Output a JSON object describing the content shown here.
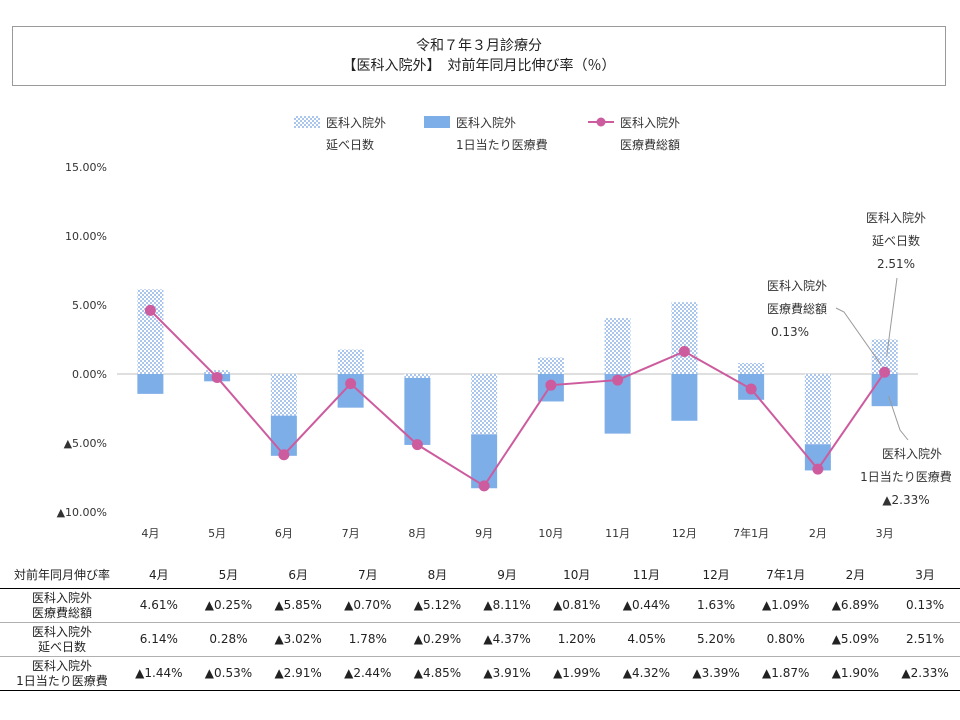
{
  "title": {
    "line1": "令和７年３月診療分",
    "line2": "【医科入院外】　対前年同月比伸び率（％）"
  },
  "colors": {
    "days_bar": "#8fb4e6",
    "cost_bar": "#7eaee8",
    "total_line": "#cc5c9e",
    "axis": "#bfbfbf"
  },
  "chart_data": {
    "type": "bar",
    "categories": [
      "4月",
      "5月",
      "6月",
      "7月",
      "8月",
      "9月",
      "10月",
      "11月",
      "12月",
      "7年1月",
      "2月",
      "3月"
    ],
    "ylim": [
      -10,
      15
    ],
    "yticks": [
      -10,
      -5,
      0,
      5,
      10,
      15
    ],
    "ytick_labels": [
      "▲10.00%",
      "▲5.00%",
      "0.00%",
      "5.00%",
      "10.00%",
      "15.00%"
    ],
    "stacked": true,
    "legend": [
      {
        "line1": "医科入院外",
        "line2": "延べ日数"
      },
      {
        "line1": "医科入院外",
        "line2": "1日当たり医療費"
      },
      {
        "line1": "医科入院外",
        "line2": "医療費総額"
      }
    ],
    "series": [
      {
        "name": "医科入院外 延べ日数",
        "type": "bar",
        "values": [
          6.14,
          0.28,
          -3.02,
          1.78,
          -0.29,
          -4.37,
          1.2,
          4.05,
          5.2,
          0.8,
          -5.09,
          2.51
        ]
      },
      {
        "name": "医科入院外 1日当たり医療費",
        "type": "bar",
        "values": [
          -1.44,
          -0.53,
          -2.91,
          -2.44,
          -4.85,
          -3.91,
          -1.99,
          -4.32,
          -3.39,
          -1.87,
          -1.9,
          -2.33
        ]
      },
      {
        "name": "医科入院外 医療費総額",
        "type": "line",
        "values": [
          4.61,
          -0.25,
          -5.85,
          -0.7,
          -5.12,
          -8.11,
          -0.81,
          -0.44,
          1.63,
          -1.09,
          -6.89,
          0.13
        ]
      }
    ],
    "annotations": [
      {
        "line1": "医科入院外",
        "line2": "延べ日数",
        "value": "2.51%"
      },
      {
        "line1": "医科入院外",
        "line2": "医療費総額",
        "value": "0.13%"
      },
      {
        "line1": "医科入院外",
        "line2": "1日当たり医療費",
        "value": "▲2.33%"
      }
    ]
  },
  "table": {
    "header_label": "対前年同月伸び率",
    "months": [
      "4月",
      "5月",
      "6月",
      "7月",
      "8月",
      "9月",
      "10月",
      "11月",
      "12月",
      "7年1月",
      "2月",
      "3月"
    ],
    "rows": [
      {
        "label1": "医科入院外",
        "label2": "医療費総額",
        "cells": [
          "4.61%",
          "▲0.25%",
          "▲5.85%",
          "▲0.70%",
          "▲5.12%",
          "▲8.11%",
          "▲0.81%",
          "▲0.44%",
          "1.63%",
          "▲1.09%",
          "▲6.89%",
          "0.13%"
        ]
      },
      {
        "label1": "医科入院外",
        "label2": "延べ日数",
        "cells": [
          "6.14%",
          "0.28%",
          "▲3.02%",
          "1.78%",
          "▲0.29%",
          "▲4.37%",
          "1.20%",
          "4.05%",
          "5.20%",
          "0.80%",
          "▲5.09%",
          "2.51%"
        ]
      },
      {
        "label1": "医科入院外",
        "label2": "1日当たり医療費",
        "cells": [
          "▲1.44%",
          "▲0.53%",
          "▲2.91%",
          "▲2.44%",
          "▲4.85%",
          "▲3.91%",
          "▲1.99%",
          "▲4.32%",
          "▲3.39%",
          "▲1.87%",
          "▲1.90%",
          "▲2.33%"
        ]
      }
    ]
  }
}
